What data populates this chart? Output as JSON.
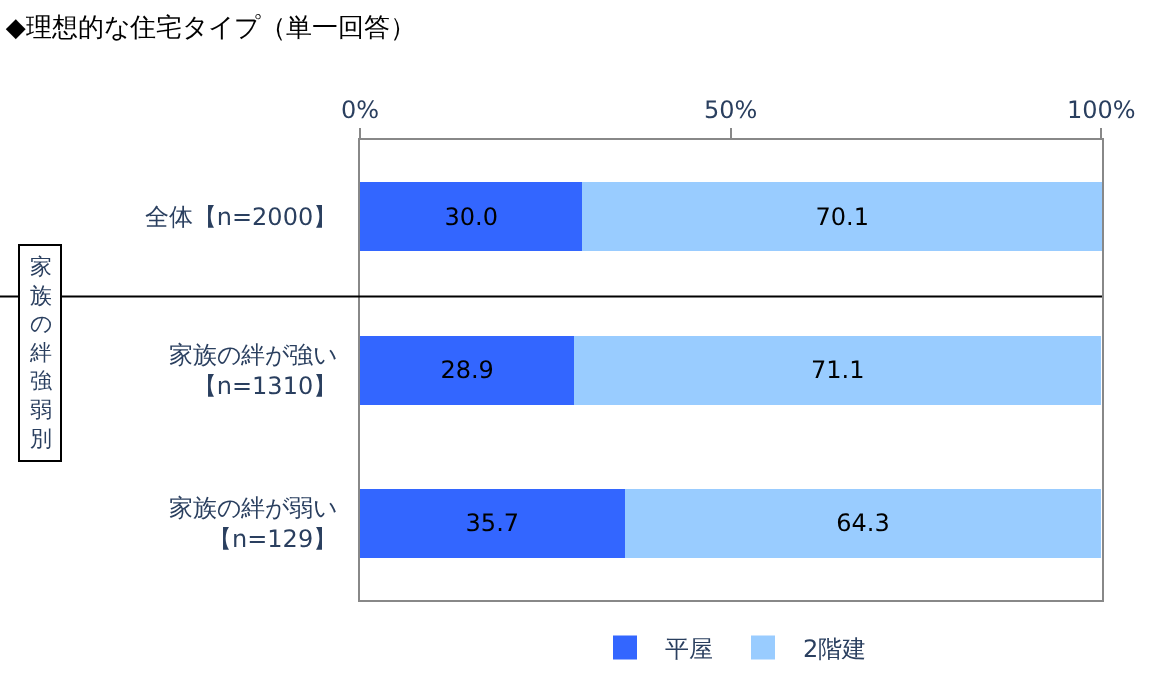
{
  "chart_data": {
    "type": "bar",
    "orientation": "horizontal",
    "stacked": true,
    "title": "◆理想的な住宅タイプ（単一回答）",
    "categories": [
      "全体【n=2000】",
      "家族の絆が強い【n=1310】",
      "家族の絆が弱い【n=129】"
    ],
    "series": [
      {
        "name": "平屋",
        "color": "#3366ff",
        "values": [
          30.0,
          28.9,
          35.7
        ],
        "value_labels": [
          "30.0",
          "28.9",
          "35.7"
        ]
      },
      {
        "name": "2階建",
        "color": "#99ccff",
        "values": [
          70.1,
          71.1,
          64.3
        ],
        "value_labels": [
          "70.1",
          "71.1",
          "64.3"
        ]
      }
    ],
    "xlim": [
      0,
      100.1
    ],
    "xticks": [
      {
        "value": 0,
        "label": "0%"
      },
      {
        "value": 50,
        "label": "50%"
      },
      {
        "value": 100,
        "label": "100%"
      }
    ],
    "legend": "bottom",
    "annotations": [
      "家族の絆強弱別"
    ]
  }
}
